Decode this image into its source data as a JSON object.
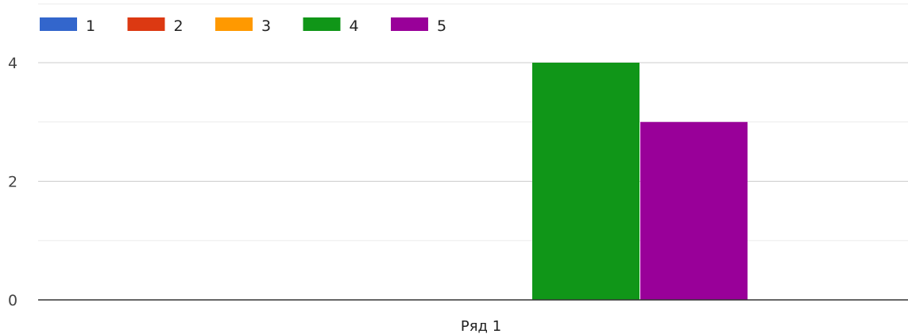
{
  "chart_data": {
    "type": "bar",
    "title": "",
    "xlabel": "",
    "ylabel": "",
    "categories": [
      "Ряд 1"
    ],
    "series": [
      {
        "name": "1",
        "values": [
          0
        ],
        "color": "#3366cc"
      },
      {
        "name": "2",
        "values": [
          0
        ],
        "color": "#dc3912"
      },
      {
        "name": "3",
        "values": [
          0
        ],
        "color": "#ff9900"
      },
      {
        "name": "4",
        "values": [
          4
        ],
        "color": "#109618"
      },
      {
        "name": "5",
        "values": [
          3
        ],
        "color": "#990099"
      }
    ],
    "ylim": [
      0,
      4
    ],
    "y_ticks": [
      "0",
      "2",
      "4"
    ],
    "grid": true,
    "legend_position": "top-left"
  }
}
